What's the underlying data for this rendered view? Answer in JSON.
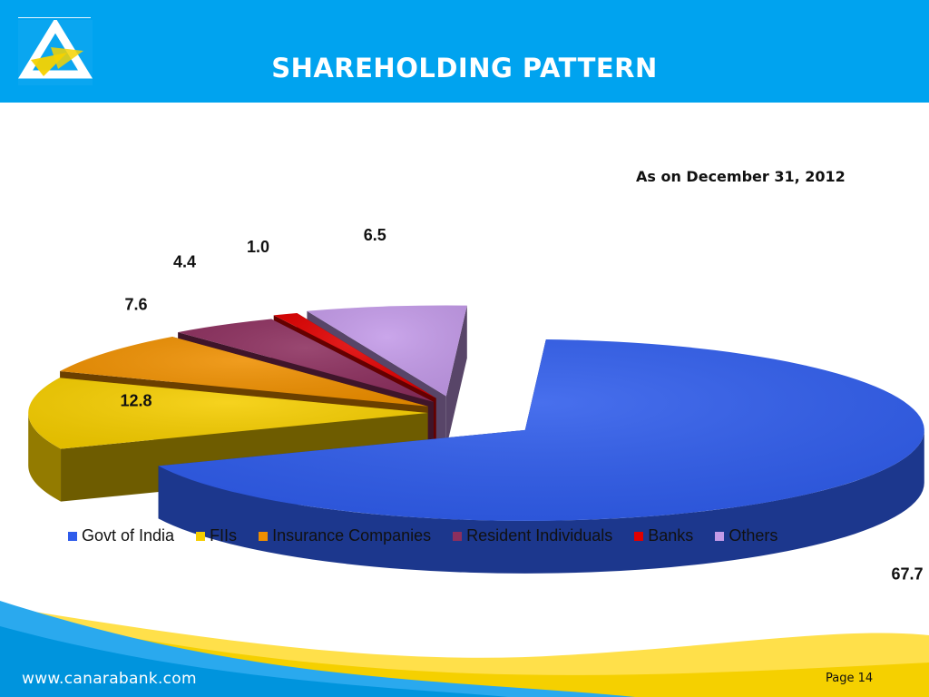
{
  "header": {
    "title": "SHAREHOLDING PATTERN",
    "logo_icon": "canara-bank-logo-icon"
  },
  "date_label": "As on December 31, 2012",
  "chart_data": {
    "type": "pie",
    "title": "",
    "categories": [
      "Govt of India",
      "FIIs",
      "Insurance Companies",
      "Resident Individuals",
      "Banks",
      "Others"
    ],
    "values": [
      67.7,
      12.8,
      7.6,
      4.4,
      1.0,
      6.5
    ],
    "value_labels": [
      "67.7",
      "12.8",
      "7.6",
      "4.4",
      "1.0",
      "6.5"
    ],
    "colors": [
      "#2f5ceb",
      "#f5cd00",
      "#ee8f00",
      "#8c2f5e",
      "#e00000",
      "#c39ae8"
    ],
    "legend_position": "bottom",
    "style": "3d-exploded"
  },
  "legend": {
    "items": [
      "Govt of India",
      "FIIs",
      "Insurance Companies",
      "Resident Individuals",
      "Banks",
      "Others"
    ]
  },
  "footer": {
    "url": "www.canarabank.com",
    "page_label": "Page  14"
  }
}
